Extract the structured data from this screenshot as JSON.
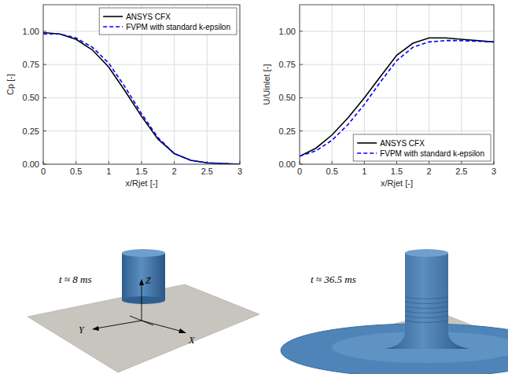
{
  "chart_data": [
    {
      "type": "line",
      "xlabel": "x/Rjet [-]",
      "ylabel": "Cp [-]",
      "x": [
        0,
        0.25,
        0.5,
        0.75,
        1.0,
        1.25,
        1.5,
        1.75,
        2.0,
        2.25,
        2.5,
        3.0
      ],
      "series": [
        {
          "name": "ANSYS CFX",
          "color": "#000000",
          "line_style": "solid",
          "values": [
            0.99,
            0.98,
            0.94,
            0.86,
            0.73,
            0.55,
            0.36,
            0.19,
            0.08,
            0.03,
            0.01,
            0.0
          ]
        },
        {
          "name": "FVPM with standard k-epsilon",
          "color": "#0000ff",
          "line_style": "dashed",
          "values": [
            0.98,
            0.98,
            0.95,
            0.88,
            0.76,
            0.58,
            0.38,
            0.2,
            0.08,
            0.03,
            0.01,
            0.0
          ]
        }
      ],
      "xlim": [
        0,
        3
      ],
      "xticks": [
        0,
        0.5,
        1,
        1.5,
        2,
        2.5,
        3
      ],
      "ylim": [
        0,
        1.2
      ],
      "yticks": [
        {
          "value": 0,
          "label": "0.00"
        },
        {
          "value": 0.25,
          "label": "0.25"
        },
        {
          "value": 0.5,
          "label": "0.50"
        },
        {
          "value": 0.75,
          "label": "0.75"
        },
        {
          "value": 1,
          "label": "1.00"
        }
      ],
      "grid": true,
      "legend": "upper right"
    },
    {
      "type": "line",
      "xlabel": "x/Rjet [-]",
      "ylabel": "U/Uinlet [-]",
      "x": [
        0,
        0.25,
        0.5,
        0.75,
        1.0,
        1.25,
        1.5,
        1.75,
        2.0,
        2.25,
        2.5,
        3.0
      ],
      "series": [
        {
          "name": "ANSYS CFX",
          "color": "#000000",
          "line_style": "solid",
          "values": [
            0.06,
            0.12,
            0.22,
            0.35,
            0.5,
            0.66,
            0.82,
            0.91,
            0.95,
            0.95,
            0.94,
            0.92
          ]
        },
        {
          "name": "FVPM with standard k-epsilon",
          "color": "#0000ff",
          "line_style": "dashed",
          "values": [
            0.06,
            0.1,
            0.18,
            0.3,
            0.45,
            0.62,
            0.78,
            0.88,
            0.92,
            0.93,
            0.93,
            0.92
          ]
        }
      ],
      "xlim": [
        0,
        3
      ],
      "xticks": [
        0,
        0.5,
        1,
        1.5,
        2,
        2.5,
        3
      ],
      "ylim": [
        0,
        1.2
      ],
      "yticks": [
        {
          "value": 0,
          "label": "0.00"
        },
        {
          "value": 0.25,
          "label": "0.25"
        },
        {
          "value": 0.5,
          "label": "0.50"
        },
        {
          "value": 0.75,
          "label": "0.75"
        },
        {
          "value": 1,
          "label": "1.00"
        }
      ],
      "grid": true,
      "legend": "lower right"
    }
  ],
  "renders": [
    {
      "time_label": "t ≈ 8 ms"
    },
    {
      "time_label": "t ≈ 36.5 ms"
    }
  ],
  "axis_labels": {
    "z": "Z",
    "y": "Y",
    "x": "X"
  }
}
